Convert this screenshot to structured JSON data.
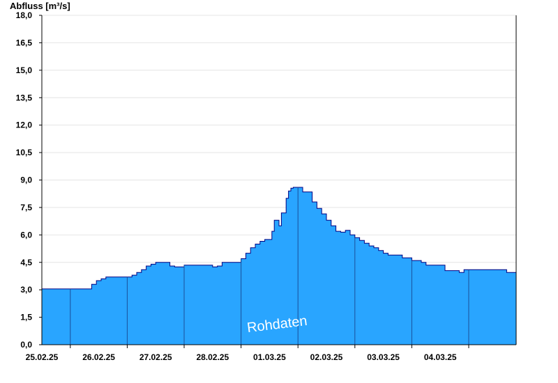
{
  "chart_data": {
    "type": "area",
    "ylabel": "Abfluss [m³/s]",
    "ylim": [
      0,
      18
    ],
    "yticks": [
      "0,0",
      "1,5",
      "3,0",
      "4,5",
      "6,0",
      "7,5",
      "9,0",
      "10,5",
      "12,0",
      "13,5",
      "15,0",
      "16,5",
      "18,0"
    ],
    "x_start": "2025-02-24T12:00",
    "x_end": "2025-03-04T20:00",
    "xticks": [
      "25.02.25",
      "26.02.25",
      "27.02.25",
      "28.02.25",
      "01.03.25",
      "02.03.25",
      "03.03.25",
      "04.03.25"
    ],
    "day_boundaries": [
      "2025-02-25T00:00",
      "2025-02-26T00:00",
      "2025-02-27T00:00",
      "2025-02-28T00:00",
      "2025-03-01T00:00",
      "2025-03-02T00:00",
      "2025-03-03T00:00",
      "2025-03-04T00:00"
    ],
    "grid": true,
    "fill_color": "#29a5ff",
    "line_color": "#000080",
    "series": [
      {
        "x": [
          "2025-02-24T12:00",
          "2025-02-25T08:00",
          "2025-02-25T09:00",
          "2025-02-25T11:00",
          "2025-02-25T13:00",
          "2025-02-25T15:00",
          "2025-02-26T00:00",
          "2025-02-26T02:00",
          "2025-02-26T04:00",
          "2025-02-26T06:00",
          "2025-02-26T08:00",
          "2025-02-26T10:00",
          "2025-02-26T12:00",
          "2025-02-26T14:00",
          "2025-02-26T18:00",
          "2025-02-26T20:00",
          "2025-02-27T00:00",
          "2025-02-27T08:00",
          "2025-02-27T12:00",
          "2025-02-27T14:00",
          "2025-02-27T16:00",
          "2025-02-27T22:00",
          "2025-02-28T00:00",
          "2025-02-28T02:00",
          "2025-02-28T04:00",
          "2025-02-28T06:00",
          "2025-02-28T08:00",
          "2025-02-28T10:00",
          "2025-02-28T13:00",
          "2025-02-28T14:00",
          "2025-02-28T15:00",
          "2025-02-28T16:00",
          "2025-02-28T17:00",
          "2025-02-28T19:00",
          "2025-02-28T20:00",
          "2025-02-28T21:00",
          "2025-02-28T22:00",
          "2025-03-01T00:00",
          "2025-03-01T02:00",
          "2025-03-01T06:00",
          "2025-03-01T08:00",
          "2025-03-01T10:00",
          "2025-03-01T12:00",
          "2025-03-01T14:00",
          "2025-03-01T16:00",
          "2025-03-01T18:00",
          "2025-03-01T20:00",
          "2025-03-01T22:00",
          "2025-03-02T00:00",
          "2025-03-02T02:00",
          "2025-03-02T04:00",
          "2025-03-02T06:00",
          "2025-03-02T08:00",
          "2025-03-02T10:00",
          "2025-03-02T12:00",
          "2025-03-02T14:00",
          "2025-03-02T16:00",
          "2025-03-02T18:00",
          "2025-03-02T20:00",
          "2025-03-03T00:00",
          "2025-03-03T04:00",
          "2025-03-03T06:00",
          "2025-03-03T10:00",
          "2025-03-03T14:00",
          "2025-03-03T20:00",
          "2025-03-03T22:00",
          "2025-03-04T00:00",
          "2025-03-04T12:00",
          "2025-03-04T16:00",
          "2025-03-04T20:00"
        ],
        "y": [
          3.05,
          3.05,
          3.3,
          3.5,
          3.6,
          3.7,
          3.7,
          3.8,
          3.95,
          4.1,
          4.3,
          4.4,
          4.5,
          4.5,
          4.3,
          4.25,
          4.35,
          4.35,
          4.25,
          4.3,
          4.5,
          4.5,
          4.7,
          5.0,
          5.3,
          5.5,
          5.65,
          5.75,
          6.2,
          6.8,
          6.8,
          6.5,
          7.2,
          8.0,
          8.4,
          8.55,
          8.6,
          8.6,
          8.35,
          7.8,
          7.45,
          7.15,
          6.8,
          6.5,
          6.2,
          6.15,
          6.25,
          6.0,
          5.85,
          5.7,
          5.55,
          5.4,
          5.3,
          5.15,
          5.0,
          4.9,
          4.9,
          4.9,
          4.75,
          4.6,
          4.5,
          4.35,
          4.35,
          4.05,
          3.95,
          4.1,
          4.1,
          4.1,
          3.95,
          3.8
        ]
      }
    ],
    "annotation": "Rohdaten"
  }
}
